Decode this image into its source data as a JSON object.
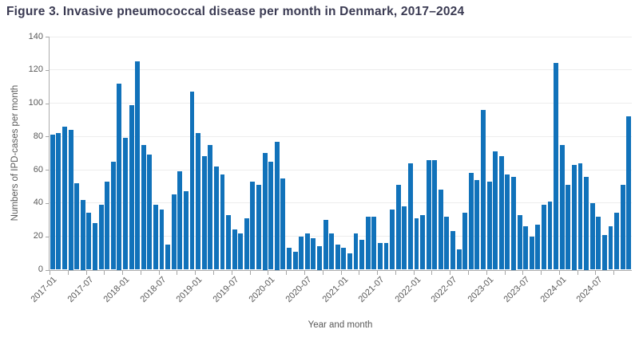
{
  "title": "Figure 3. Invasive pneumococcal disease per month in Denmark, 2017–2024",
  "chart_data": {
    "type": "bar",
    "title": "Figure 3. Invasive pneumococcal disease per month in Denmark, 2017–2024",
    "xlabel": "Year and month",
    "ylabel": "Numbers of IPD-cases per month",
    "ylim": [
      0,
      140
    ],
    "y_ticks": [
      0,
      20,
      40,
      60,
      80,
      100,
      120,
      140
    ],
    "grid": true,
    "legend": false,
    "bar_color": "#1172ba",
    "start_month": "2017-01",
    "x_tick_labels": [
      "2017-01",
      "2017-07",
      "2018-01",
      "2018-07",
      "2019-01",
      "2019-07",
      "2020-01",
      "2020-07",
      "2021-01",
      "2021-07",
      "2022-01",
      "2022-07",
      "2023-01",
      "2023-07",
      "2024-01",
      "2024-07"
    ],
    "values": [
      81,
      82,
      86,
      84,
      52,
      42,
      34,
      28,
      39,
      53,
      65,
      112,
      79,
      99,
      125,
      75,
      69,
      39,
      36,
      15,
      45,
      59,
      47,
      107,
      82,
      68,
      75,
      62,
      57,
      33,
      24,
      22,
      31,
      53,
      51,
      70,
      65,
      77,
      55,
      13,
      11,
      20,
      22,
      19,
      14,
      30,
      22,
      15,
      13,
      10,
      22,
      18,
      32,
      32,
      16,
      16,
      36,
      51,
      38,
      64,
      31,
      33,
      66,
      66,
      48,
      32,
      23,
      12,
      34,
      58,
      54,
      96,
      53,
      71,
      68,
      57,
      56,
      33,
      26,
      20,
      27,
      39,
      41,
      124,
      75,
      51,
      63,
      64,
      56,
      40,
      32,
      21,
      26,
      34,
      51,
      92
    ]
  },
  "style": {
    "grid_color": "#ededed",
    "axis_color": "#adadad",
    "tick_color": "#a6a6a6",
    "label_color": "#595959",
    "title_color": "#3a3a52"
  }
}
